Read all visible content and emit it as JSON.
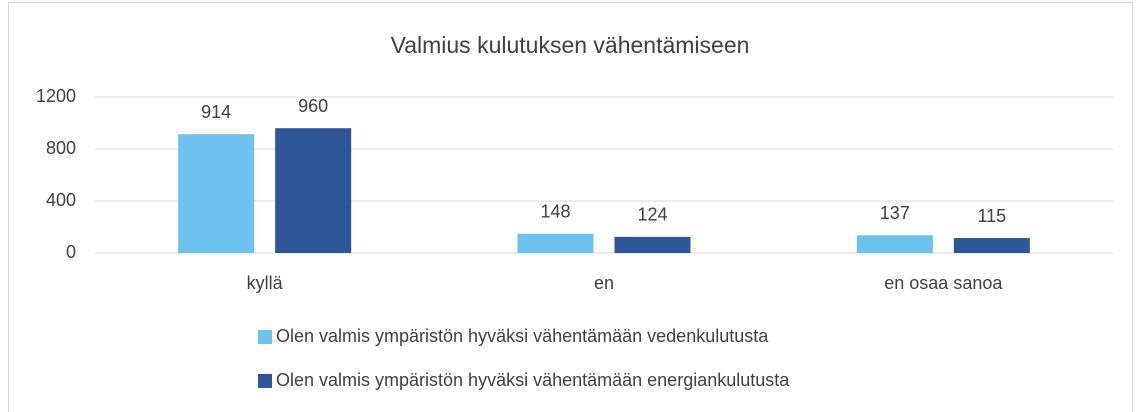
{
  "chart_data": {
    "type": "bar",
    "title": "Valmius kulutuksen vähentämiseen",
    "categories": [
      "kyllä",
      "en",
      "en osaa sanoa"
    ],
    "series": [
      {
        "name": "Olen valmis ympäristön hyväksi vähentämään vedenkulutusta",
        "color": "#6dc2ef",
        "values": [
          914,
          148,
          137
        ]
      },
      {
        "name": "Olen valmis ympäristön hyväksi vähentämään energiankulutusta",
        "color": "#2e5597",
        "values": [
          960,
          124,
          115
        ]
      }
    ],
    "ylim": [
      0,
      1200
    ],
    "yticks": [
      0,
      400,
      800,
      1200
    ],
    "grid": true,
    "legend": "bottom"
  }
}
